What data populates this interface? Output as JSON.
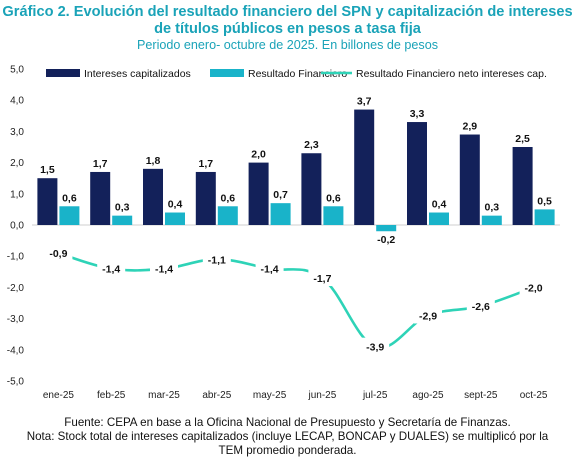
{
  "title_line1": "Gráfico 2. Evolución del resultado financiero del SPN y capitalización de intereses",
  "title_line2": "de títulos públicos en pesos a tasa fija",
  "subtitle": "Periodo enero- octubre de 2025. En billones de pesos",
  "footer_source": "Fuente: CEPA en base a la Oficina Nacional de Presupuesto y Secretaría de Finanzas.",
  "footer_note1": "Nota: Stock total de intereses capitalizados (incluye LECAP, BONCAP y DUALES) se multiplicó por la",
  "footer_note2": "TEM promedio ponderada.",
  "colors": {
    "bar1": "#13215a",
    "bar2": "#19b3c9",
    "line": "#2ed3b7",
    "title": "#1aa3b8"
  },
  "chart_data": {
    "type": "bar",
    "categories": [
      "ene-25",
      "feb-25",
      "mar-25",
      "abr-25",
      "may-25",
      "jun-25",
      "jul-25",
      "ago-25",
      "sept-25",
      "oct-25"
    ],
    "ylim": [
      -5,
      5
    ],
    "yticks": [
      "5,0",
      "4,0",
      "3,0",
      "2,0",
      "1,0",
      "0,0",
      "-1,0",
      "-2,0",
      "-3,0",
      "-4,0",
      "-5,0"
    ],
    "grid": false,
    "legend": "top",
    "series": [
      {
        "name": "Intereses capitalizados",
        "kind": "bar",
        "values": [
          1.5,
          1.7,
          1.8,
          1.7,
          2.0,
          2.3,
          3.7,
          3.3,
          2.9,
          2.5
        ],
        "labels": [
          "1,5",
          "1,7",
          "1,8",
          "1,7",
          "2,0",
          "2,3",
          "3,7",
          "3,3",
          "2,9",
          "2,5"
        ]
      },
      {
        "name": "Resultado Financiero",
        "kind": "bar",
        "values": [
          0.6,
          0.3,
          0.4,
          0.6,
          0.7,
          0.6,
          -0.2,
          0.4,
          0.3,
          0.5
        ],
        "labels": [
          "0,6",
          "0,3",
          "0,4",
          "0,6",
          "0,7",
          "0,6",
          "-0,2",
          "0,4",
          "0,3",
          "0,5"
        ]
      },
      {
        "name": "Resultado Financiero neto intereses cap.",
        "kind": "line",
        "values": [
          -0.9,
          -1.4,
          -1.4,
          -1.1,
          -1.4,
          -1.7,
          -3.9,
          -2.9,
          -2.6,
          -2.0
        ],
        "labels": [
          "-0,9",
          "-1,4",
          "-1,4",
          "-1,1",
          "-1,4",
          "-1,7",
          "-3,9",
          "-2,9",
          "-2,6",
          "-2,0"
        ]
      }
    ]
  }
}
